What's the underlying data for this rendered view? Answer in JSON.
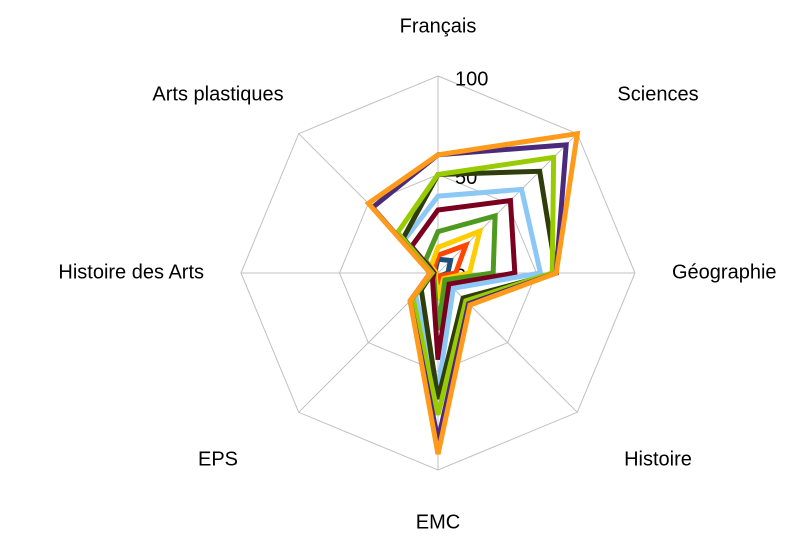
{
  "chart_data": {
    "type": "radar",
    "categories": [
      "Français",
      "Sciences",
      "Géographie",
      "Histoire",
      "EMC",
      "EPS",
      "Histoire des Arts",
      "Arts plastiques"
    ],
    "ylim": [
      0,
      100
    ],
    "yticks": [
      0,
      50,
      100
    ],
    "grid": true,
    "series": [
      {
        "color": "#1f4e79",
        "values": [
          7,
          9,
          5,
          2,
          3,
          1,
          1,
          2
        ]
      },
      {
        "color": "#ff4500",
        "values": [
          9,
          20,
          9,
          2,
          6,
          1,
          1,
          3
        ]
      },
      {
        "color": "#ffcc00",
        "values": [
          13,
          30,
          16,
          4,
          14,
          2,
          1,
          5
        ]
      },
      {
        "color": "#4e9a1f",
        "values": [
          21,
          41,
          28,
          5,
          29,
          3,
          2,
          9
        ]
      },
      {
        "color": "#7b0020",
        "values": [
          32,
          52,
          39,
          8,
          44,
          4,
          2,
          19
        ]
      },
      {
        "color": "#8cc8f5",
        "values": [
          39,
          60,
          52,
          11,
          59,
          16,
          3,
          24
        ]
      },
      {
        "color": "#2f3d0a",
        "values": [
          50,
          73,
          60,
          18,
          64,
          12,
          3,
          25
        ]
      },
      {
        "color": "#99cc00",
        "values": [
          50,
          83,
          58,
          20,
          72,
          18,
          3,
          29
        ]
      },
      {
        "color": "#4b2a7b",
        "values": [
          60,
          92,
          60,
          22,
          85,
          20,
          4,
          47
        ]
      },
      {
        "color": "#ff9a1a",
        "values": [
          60,
          100,
          60,
          23,
          92,
          20,
          4,
          50
        ]
      }
    ]
  }
}
